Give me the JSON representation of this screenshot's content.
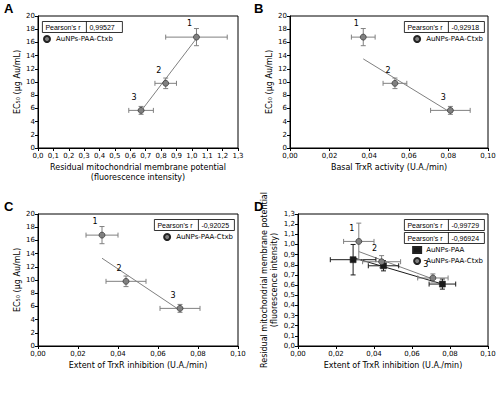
{
  "chart_data": [
    {
      "type": "scatter",
      "title": "A",
      "x_label": "Residual mitochondrial membrane potential (fluorescence intensity)",
      "y_label": "EC₅₀ (μg Au/mL)",
      "xlim": [
        0,
        1.3
      ],
      "xticks": [
        {
          "value": 0,
          "label": "0,0"
        },
        {
          "value": 0.1,
          "label": "0,1"
        },
        {
          "value": 0.2,
          "label": "0,2"
        },
        {
          "value": 0.3,
          "label": "0,3"
        },
        {
          "value": 0.4,
          "label": "0,4"
        },
        {
          "value": 0.5,
          "label": "0,5"
        },
        {
          "value": 0.6,
          "label": "0,6"
        },
        {
          "value": 0.7,
          "label": "0,7"
        },
        {
          "value": 0.8,
          "label": "0,8"
        },
        {
          "value": 0.9,
          "label": "0,9"
        },
        {
          "value": 1.0,
          "label": "1,0"
        },
        {
          "value": 1.1,
          "label": "1,1"
        },
        {
          "value": 1.2,
          "label": "1,2"
        },
        {
          "value": 1.3,
          "label": "1,3"
        }
      ],
      "ylim": [
        0,
        20
      ],
      "yticks": [
        0,
        2,
        4,
        6,
        8,
        10,
        12,
        14,
        16,
        18,
        20
      ],
      "grid": false,
      "legend": "upper left",
      "series": [
        {
          "name": "AuNPs-PAA-Ctxb",
          "color": "#808080",
          "marker": "circle",
          "x": [
            1.03,
            0.83,
            0.67
          ],
          "values": [
            16.8,
            9.8,
            5.7
          ],
          "x_err": [
            0.2,
            0.07,
            0.08
          ],
          "y_err": [
            1.3,
            0.8,
            0.6
          ],
          "point_labels": [
            "1",
            "2",
            "3"
          ],
          "fit_x": [
            0.67,
            1.03
          ],
          "fit_y": [
            5.6,
            16.6
          ],
          "stat_label": "Pearson's r",
          "stat_text": "0,99527"
        }
      ]
    },
    {
      "type": "scatter",
      "title": "B",
      "x_label": "Basal TrxR activity (U.A./min)",
      "y_label": "EC₅₀ (μg Au/mL)",
      "xlim": [
        0,
        0.1
      ],
      "xticks": [
        {
          "value": 0,
          "label": "0,00"
        },
        {
          "value": 0.02,
          "label": "0,02"
        },
        {
          "value": 0.04,
          "label": "0,04"
        },
        {
          "value": 0.06,
          "label": "0,06"
        },
        {
          "value": 0.08,
          "label": "0,08"
        },
        {
          "value": 0.1,
          "label": "0,10"
        }
      ],
      "ylim": [
        0,
        20
      ],
      "yticks": [
        0,
        2,
        4,
        6,
        8,
        10,
        12,
        14,
        16,
        18,
        20
      ],
      "grid": false,
      "legend": "upper right",
      "series": [
        {
          "name": "AuNPs-PAA-Ctxb",
          "color": "#808080",
          "marker": "circle",
          "x": [
            0.037,
            0.053,
            0.081
          ],
          "values": [
            16.8,
            9.8,
            5.7
          ],
          "x_err": [
            0.006,
            0.006,
            0.01
          ],
          "y_err": [
            1.3,
            0.8,
            0.6
          ],
          "point_labels": [
            "1",
            "2",
            "3"
          ],
          "fit_x": [
            0.037,
            0.081
          ],
          "fit_y": [
            13.5,
            5.4
          ],
          "stat_label": "Pearson's r",
          "stat_text": "-0,92918"
        }
      ]
    },
    {
      "type": "scatter",
      "title": "C",
      "x_label": "Extent of TrxR inhibition (U.A./min)",
      "y_label": "EC₅₀ (μg Au/mL)",
      "xlim": [
        0,
        0.1
      ],
      "xticks": [
        {
          "value": 0,
          "label": "0,00"
        },
        {
          "value": 0.02,
          "label": "0,02"
        },
        {
          "value": 0.04,
          "label": "0,04"
        },
        {
          "value": 0.06,
          "label": "0,06"
        },
        {
          "value": 0.08,
          "label": "0,08"
        },
        {
          "value": 0.1,
          "label": "0,10"
        }
      ],
      "ylim": [
        0,
        20
      ],
      "yticks": [
        0,
        2,
        4,
        6,
        8,
        10,
        12,
        14,
        16,
        18,
        20
      ],
      "grid": false,
      "legend": "upper right",
      "series": [
        {
          "name": "AuNPs-PAA-Ctxb",
          "color": "#808080",
          "marker": "circle",
          "x": [
            0.032,
            0.044,
            0.071
          ],
          "values": [
            16.8,
            9.8,
            5.7
          ],
          "x_err": [
            0.008,
            0.01,
            0.01
          ],
          "y_err": [
            1.3,
            0.8,
            0.6
          ],
          "point_labels": [
            "1",
            "2",
            "3"
          ],
          "fit_x": [
            0.032,
            0.071
          ],
          "fit_y": [
            13.3,
            5.4
          ],
          "stat_label": "Pearson's r",
          "stat_text": "-0,92025"
        }
      ]
    },
    {
      "type": "scatter",
      "title": "D",
      "x_label": "Extent of TrxR inhibition (U.A./min)",
      "y_label": "Residual mitochondrial membrane potential (fluorescence intensity)",
      "xlim": [
        0,
        0.1
      ],
      "xticks": [
        {
          "value": 0,
          "label": "0,00"
        },
        {
          "value": 0.02,
          "label": "0,02"
        },
        {
          "value": 0.04,
          "label": "0,04"
        },
        {
          "value": 0.06,
          "label": "0,06"
        },
        {
          "value": 0.08,
          "label": "0,08"
        },
        {
          "value": 0.1,
          "label": "0,10"
        }
      ],
      "ylim": [
        0,
        1.3
      ],
      "yticks": [
        {
          "value": 0,
          "label": "0,0"
        },
        {
          "value": 0.1,
          "label": "0,1"
        },
        {
          "value": 0.2,
          "label": "0,2"
        },
        {
          "value": 0.3,
          "label": "0,3"
        },
        {
          "value": 0.4,
          "label": "0,4"
        },
        {
          "value": 0.5,
          "label": "0,5"
        },
        {
          "value": 0.6,
          "label": "0,6"
        },
        {
          "value": 0.7,
          "label": "0,7"
        },
        {
          "value": 0.8,
          "label": "0,8"
        },
        {
          "value": 0.9,
          "label": "0,9"
        },
        {
          "value": 1.0,
          "label": "1,0"
        },
        {
          "value": 1.1,
          "label": "1,1"
        },
        {
          "value": 1.2,
          "label": "1,2"
        },
        {
          "value": 1.3,
          "label": "1,3"
        }
      ],
      "grid": false,
      "legend": "upper right",
      "series": [
        {
          "name": "AuNPs-PAA",
          "color": "#1a1a1a",
          "marker": "square",
          "x": [
            0.029,
            0.045,
            0.076
          ],
          "values": [
            0.85,
            0.79,
            0.61
          ],
          "x_err": [
            0.012,
            0.008,
            0.007
          ],
          "y_err": [
            0.15,
            0.05,
            0.05
          ],
          "fit_x": [
            0.029,
            0.076
          ],
          "fit_y": [
            0.87,
            0.61
          ],
          "stat_label": "Pearson's r",
          "stat_text": "-0,99729"
        },
        {
          "name": "AuNPs-PAA-Ctxb",
          "color": "#808080",
          "marker": "circle",
          "x": [
            0.032,
            0.044,
            0.071
          ],
          "values": [
            1.03,
            0.83,
            0.67
          ],
          "x_err": [
            0.008,
            0.01,
            0.008
          ],
          "y_err": [
            0.18,
            0.06,
            0.04
          ],
          "point_labels": [
            "1",
            "2",
            "3"
          ],
          "fit_x": [
            0.032,
            0.071
          ],
          "fit_y": [
            0.93,
            0.66
          ],
          "stat_label": "Pearson's r",
          "stat_text": "-0,96924"
        }
      ]
    }
  ]
}
